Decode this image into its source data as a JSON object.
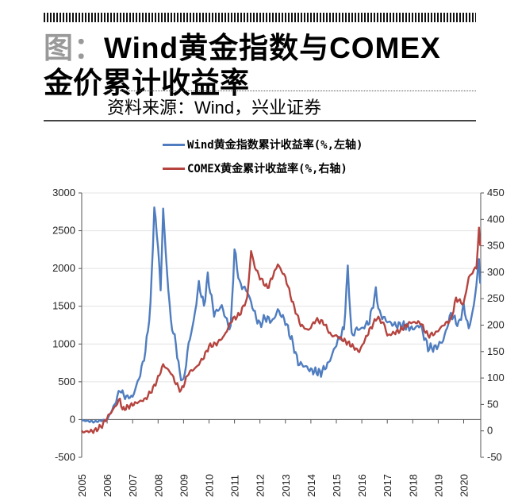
{
  "header": {
    "fig_label": "图：",
    "title_line1": "Wind黄金指数与COMEX",
    "title_line2": "金价累计收益率",
    "source": "资料来源：Wind，兴业证券"
  },
  "chart_data": {
    "type": "line",
    "title": "Wind黄金指数与COMEX金价累计收益率",
    "x_ticks": [
      "2005",
      "2006",
      "2007",
      "2008",
      "2009",
      "2010",
      "2011",
      "2012",
      "2013",
      "2014",
      "2015",
      "2016",
      "2017",
      "2018",
      "2019",
      "2020"
    ],
    "y_left": {
      "ticks": [
        "3000",
        "2500",
        "2000",
        "1500",
        "1000",
        "500",
        "0",
        "-500"
      ],
      "range": [
        -500,
        3000
      ]
    },
    "y_right": {
      "ticks": [
        "450",
        "400",
        "350",
        "300",
        "250",
        "200",
        "150",
        "100",
        "50",
        "0",
        "-50"
      ],
      "range": [
        -50,
        450
      ]
    },
    "grid": true,
    "legend_position": "top",
    "series": [
      {
        "name": "Wind黄金指数累计收益率(%,左轴)",
        "axis": "left",
        "color": "#4f7dbf",
        "x": [
          2005,
          2005.5,
          2006,
          2006.3,
          2006.5,
          2006.7,
          2007,
          2007.3,
          2007.5,
          2007.7,
          2007.85,
          2008,
          2008.1,
          2008.2,
          2008.3,
          2008.5,
          2008.7,
          2008.85,
          2009,
          2009.2,
          2009.4,
          2009.6,
          2009.8,
          2009.95,
          2010.2,
          2010.5,
          2010.7,
          2010.85,
          2011,
          2011.2,
          2011.5,
          2011.7,
          2011.85,
          2012,
          2012.2,
          2012.5,
          2012.7,
          2013,
          2013.3,
          2013.5,
          2013.8,
          2014,
          2014.4,
          2014.7,
          2015,
          2015.3,
          2015.45,
          2015.6,
          2015.8,
          2016,
          2016.3,
          2016.55,
          2016.7,
          2017,
          2017.3,
          2017.6,
          2018,
          2018.3,
          2018.6,
          2018.9,
          2019.2,
          2019.5,
          2019.8,
          2020,
          2020.2,
          2020.4,
          2020.6,
          2020.65
        ],
        "y": [
          -10,
          -30,
          0,
          200,
          400,
          300,
          300,
          600,
          900,
          1500,
          2800,
          2300,
          1700,
          2800,
          2200,
          1300,
          1000,
          600,
          500,
          1000,
          1300,
          1800,
          1500,
          1900,
          1400,
          1500,
          1300,
          1200,
          2250,
          1800,
          1700,
          1500,
          1350,
          1250,
          1350,
          1300,
          1450,
          1300,
          1000,
          750,
          700,
          650,
          620,
          750,
          1000,
          1200,
          2000,
          1100,
          1200,
          1200,
          1300,
          1700,
          1400,
          1300,
          1250,
          1250,
          1200,
          1250,
          950,
          950,
          1050,
          1400,
          1250,
          1500,
          1200,
          1500,
          2100,
          1800
        ]
      },
      {
        "name": "COMEX黄金累计收益率(%,右轴)",
        "axis": "right",
        "color": "#b5443f",
        "x": [
          2005,
          2005.5,
          2005.8,
          2006,
          2006.3,
          2006.5,
          2006.6,
          2007,
          2007.5,
          2007.8,
          2008,
          2008.2,
          2008.5,
          2008.7,
          2008.9,
          2009.2,
          2009.5,
          2009.8,
          2010,
          2010.3,
          2010.6,
          2010.9,
          2011.2,
          2011.5,
          2011.65,
          2011.8,
          2012,
          2012.3,
          2012.7,
          2013,
          2013.3,
          2013.6,
          2013.9,
          2014.2,
          2014.5,
          2014.8,
          2015,
          2015.5,
          2015.9,
          2016.3,
          2016.6,
          2016.9,
          2017,
          2017.5,
          2017.9,
          2018.3,
          2018.6,
          2018.9,
          2019.2,
          2019.5,
          2019.7,
          2020,
          2020.2,
          2020.5,
          2020.6,
          2020.65
        ],
        "y": [
          -2,
          0,
          10,
          25,
          45,
          60,
          40,
          50,
          60,
          80,
          100,
          125,
          110,
          90,
          75,
          110,
          120,
          140,
          160,
          165,
          180,
          210,
          220,
          250,
          340,
          310,
          290,
          270,
          315,
          290,
          240,
          200,
          190,
          210,
          205,
          180,
          180,
          165,
          150,
          190,
          215,
          200,
          180,
          190,
          205,
          205,
          180,
          185,
          200,
          210,
          250,
          240,
          290,
          310,
          380,
          350
        ]
      }
    ]
  }
}
